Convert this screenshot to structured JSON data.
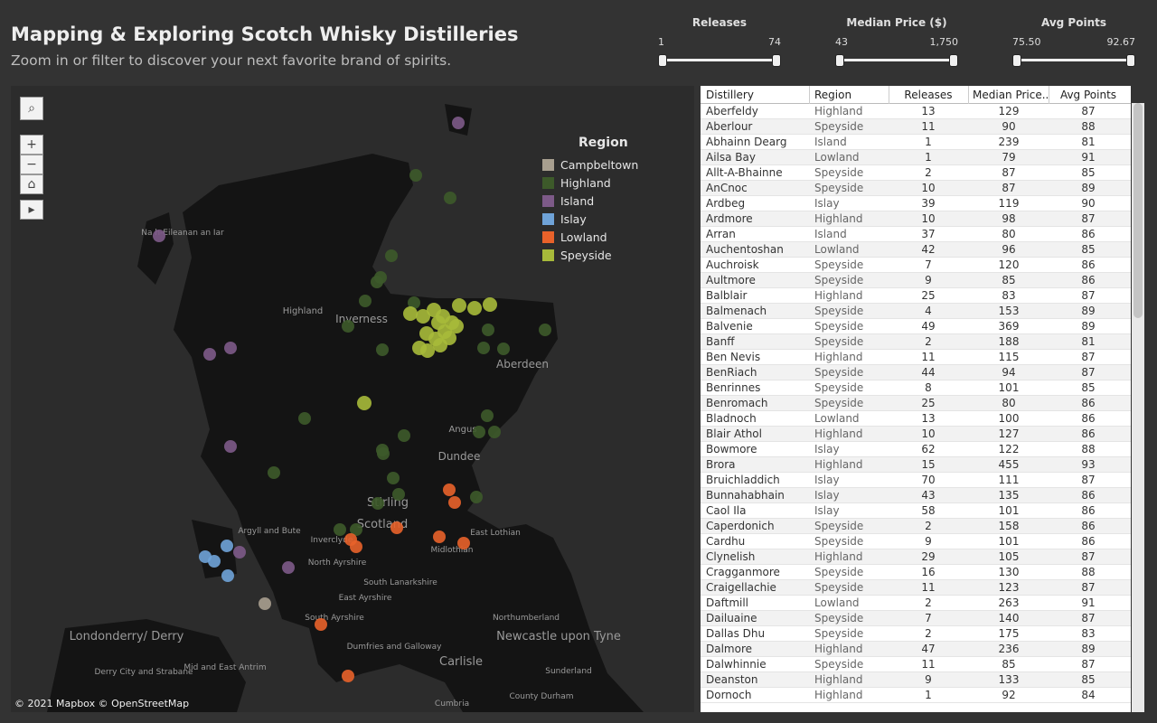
{
  "header": {
    "title": "Mapping & Exploring Scotch Whisky Distilleries",
    "subtitle": "Zoom in or filter to discover your next favorite brand of spirits."
  },
  "filters": [
    {
      "label": "Releases",
      "min": "1",
      "max": "74"
    },
    {
      "label": "Median Price ($)",
      "min": "43",
      "max": "1,750"
    },
    {
      "label": "Avg Points",
      "min": "75.50",
      "max": "92.67"
    }
  ],
  "map": {
    "legend": {
      "title": "Region",
      "items": [
        {
          "name": "Campbeltown",
          "color": "#a89f8f"
        },
        {
          "name": "Highland",
          "color": "#3d5a2a"
        },
        {
          "name": "Island",
          "color": "#7d5a88"
        },
        {
          "name": "Islay",
          "color": "#6fa3d8"
        },
        {
          "name": "Lowland",
          "color": "#e8622a"
        },
        {
          "name": "Speyside",
          "color": "#a7ba3a"
        }
      ]
    },
    "places": [
      "Na h-Eileanan an Iar",
      "Highland",
      "Inverness",
      "Aberdeen",
      "Angus",
      "Dundee",
      "Stirling",
      "Scotland",
      "Argyll and Bute",
      "Inverclyde",
      "East Lothian",
      "Midlothian",
      "North Ayrshire",
      "South Lanarkshire",
      "East Ayrshire",
      "South Ayrshire",
      "Dumfries and Galloway",
      "Northumberland",
      "Newcastle upon Tyne",
      "Carlisle",
      "Sunderland",
      "County Durham",
      "Cumbria",
      "Londonderry/ Derry",
      "Derry City and Strabane",
      "Mid and East Antrim"
    ],
    "attribution": "© 2021 Mapbox  © OpenStreetMap"
  },
  "table": {
    "columns": [
      "Distillery",
      "Region",
      "Releases",
      "Median Price..",
      "Avg Points"
    ],
    "rows": [
      [
        "Aberfeldy",
        "Highland",
        13,
        129,
        87
      ],
      [
        "Aberlour",
        "Speyside",
        11,
        90,
        88
      ],
      [
        "Abhainn Dearg",
        "Island",
        1,
        239,
        81
      ],
      [
        "Ailsa Bay",
        "Lowland",
        1,
        79,
        91
      ],
      [
        "Allt-A-Bhainne",
        "Speyside",
        2,
        87,
        85
      ],
      [
        "AnCnoc",
        "Speyside",
        10,
        87,
        89
      ],
      [
        "Ardbeg",
        "Islay",
        39,
        119,
        90
      ],
      [
        "Ardmore",
        "Highland",
        10,
        98,
        87
      ],
      [
        "Arran",
        "Island",
        37,
        80,
        86
      ],
      [
        "Auchentoshan",
        "Lowland",
        42,
        96,
        85
      ],
      [
        "Auchroisk",
        "Speyside",
        7,
        120,
        86
      ],
      [
        "Aultmore",
        "Speyside",
        9,
        85,
        86
      ],
      [
        "Balblair",
        "Highland",
        25,
        83,
        87
      ],
      [
        "Balmenach",
        "Speyside",
        4,
        153,
        89
      ],
      [
        "Balvenie",
        "Speyside",
        49,
        369,
        89
      ],
      [
        "Banff",
        "Speyside",
        2,
        188,
        81
      ],
      [
        "Ben Nevis",
        "Highland",
        11,
        115,
        87
      ],
      [
        "BenRiach",
        "Speyside",
        44,
        94,
        87
      ],
      [
        "Benrinnes",
        "Speyside",
        8,
        101,
        85
      ],
      [
        "Benromach",
        "Speyside",
        25,
        80,
        86
      ],
      [
        "Bladnoch",
        "Lowland",
        13,
        100,
        86
      ],
      [
        "Blair Athol",
        "Highland",
        10,
        127,
        86
      ],
      [
        "Bowmore",
        "Islay",
        62,
        122,
        88
      ],
      [
        "Brora",
        "Highland",
        15,
        455,
        93
      ],
      [
        "Bruichladdich",
        "Islay",
        70,
        111,
        87
      ],
      [
        "Bunnahabhain",
        "Islay",
        43,
        135,
        86
      ],
      [
        "Caol Ila",
        "Islay",
        58,
        101,
        86
      ],
      [
        "Caperdonich",
        "Speyside",
        2,
        158,
        86
      ],
      [
        "Cardhu",
        "Speyside",
        9,
        101,
        86
      ],
      [
        "Clynelish",
        "Highland",
        29,
        105,
        87
      ],
      [
        "Cragganmore",
        "Speyside",
        16,
        130,
        88
      ],
      [
        "Craigellachie",
        "Speyside",
        11,
        123,
        87
      ],
      [
        "Daftmill",
        "Lowland",
        2,
        263,
        91
      ],
      [
        "Dailuaine",
        "Speyside",
        7,
        140,
        87
      ],
      [
        "Dallas Dhu",
        "Speyside",
        2,
        175,
        83
      ],
      [
        "Dalmore",
        "Highland",
        47,
        236,
        89
      ],
      [
        "Dalwhinnie",
        "Speyside",
        11,
        85,
        87
      ],
      [
        "Deanston",
        "Highland",
        9,
        133,
        85
      ],
      [
        "Dornoch",
        "Highland",
        1,
        92,
        84
      ]
    ]
  }
}
